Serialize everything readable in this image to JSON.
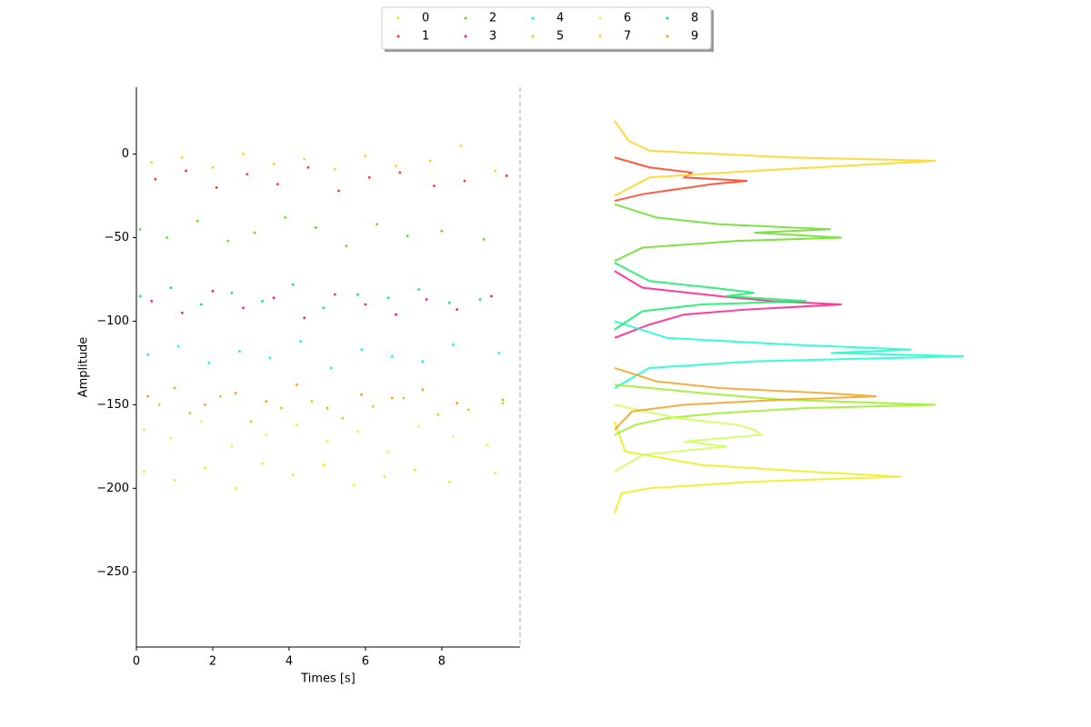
{
  "chart_data": {
    "type": "scatter",
    "xlabel": "Times [s]",
    "ylabel": "Amplitude",
    "xlim": [
      0,
      10.05
    ],
    "ylim": [
      -295,
      40
    ],
    "x2lim": [
      0,
      100
    ],
    "xticks": [
      0,
      2,
      4,
      6,
      8
    ],
    "yticks": [
      0,
      {
        "value": -50,
        "label": "−50"
      },
      {
        "value": -100,
        "label": "−100"
      },
      {
        "value": -150,
        "label": "−150"
      },
      {
        "value": -200,
        "label": "−200"
      },
      {
        "value": -250,
        "label": "−250"
      }
    ],
    "series": [
      {
        "name": "0",
        "color": "#eeee11",
        "x": [
          0.2,
          1.0,
          1.8,
          2.6,
          3.3,
          4.1,
          4.9,
          5.7,
          6.5,
          7.3,
          8.2,
          9.4
        ],
        "values": [
          -190,
          -195,
          -188,
          -200,
          -185,
          -192,
          -186,
          -198,
          -193,
          -189,
          -196,
          -191
        ],
        "density_y": [
          -160,
          -178,
          -186,
          -190,
          -193,
          -196,
          -200,
          -203,
          -215
        ],
        "density": [
          0,
          3,
          25,
          55,
          82,
          40,
          10,
          2,
          0
        ]
      },
      {
        "name": "1",
        "color": "#ff3c1e",
        "x": [
          0.5,
          1.3,
          2.1,
          2.9,
          3.7,
          4.5,
          5.3,
          6.1,
          6.9,
          7.8,
          8.6,
          9.7
        ],
        "values": [
          -15,
          -10,
          -20,
          -12,
          -18,
          -8,
          -22,
          -14,
          -11,
          -19,
          -16,
          -13
        ],
        "density_y": [
          -2,
          -8,
          -11,
          -14,
          -16,
          -18,
          -21,
          -24,
          -28
        ],
        "density": [
          0,
          10,
          22,
          20,
          38,
          28,
          18,
          8,
          0
        ]
      },
      {
        "name": "2",
        "color": "#66dd22",
        "x": [
          0.1,
          0.8,
          1.6,
          2.4,
          3.1,
          3.9,
          4.7,
          5.5,
          6.3,
          7.1,
          8.0,
          9.1
        ],
        "values": [
          -45,
          -50,
          -40,
          -52,
          -47,
          -38,
          -44,
          -55,
          -42,
          -49,
          -46,
          -51
        ],
        "density_y": [
          -30,
          -38,
          -42,
          -45,
          -47,
          -50,
          -52,
          -56,
          -64
        ],
        "density": [
          0,
          12,
          30,
          62,
          40,
          65,
          35,
          8,
          0
        ]
      },
      {
        "name": "3",
        "color": "#ff1a8c",
        "x": [
          0.4,
          1.2,
          2.0,
          2.8,
          3.6,
          4.4,
          5.2,
          6.0,
          6.8,
          7.6,
          8.4,
          9.3
        ],
        "values": [
          -88,
          -95,
          -82,
          -92,
          -86,
          -98,
          -84,
          -90,
          -96,
          -87,
          -93,
          -85
        ],
        "density_y": [
          -70,
          -80,
          -85,
          -88,
          -90,
          -93,
          -96,
          -102,
          -110
        ],
        "density": [
          0,
          8,
          30,
          45,
          65,
          38,
          20,
          10,
          0
        ]
      },
      {
        "name": "4",
        "color": "#11ffcc",
        "x": [
          0.3,
          1.1,
          1.9,
          2.7,
          3.5,
          4.3,
          5.1,
          5.9,
          6.7,
          7.5,
          8.3,
          9.5
        ],
        "values": [
          -120,
          -115,
          -125,
          -118,
          -122,
          -112,
          -128,
          -117,
          -121,
          -124,
          -114,
          -119
        ],
        "density_y": [
          -100,
          -110,
          -114,
          -117,
          -119,
          -121,
          -124,
          -128,
          -140
        ],
        "density": [
          0,
          15,
          50,
          85,
          62,
          100,
          40,
          10,
          0
        ]
      },
      {
        "name": "5",
        "color": "#99ee22",
        "x": [
          0.6,
          1.4,
          2.2,
          3.0,
          3.8,
          4.6,
          5.4,
          6.2,
          7.0,
          7.9,
          8.7,
          9.6
        ],
        "values": [
          -150,
          -155,
          -145,
          -160,
          -152,
          -148,
          -158,
          -151,
          -146,
          -156,
          -153,
          -149
        ],
        "density_y": [
          -138,
          -143,
          -147,
          -150,
          -152,
          -155,
          -158,
          -162,
          -168
        ],
        "density": [
          0,
          25,
          48,
          92,
          55,
          30,
          15,
          6,
          0
        ]
      },
      {
        "name": "6",
        "color": "#ccff55",
        "x": [
          0.2,
          0.9,
          1.7,
          2.5,
          3.4,
          4.2,
          5.0,
          5.8,
          6.6,
          7.4,
          8.3,
          9.2
        ],
        "values": [
          -165,
          -170,
          -160,
          -175,
          -168,
          -162,
          -172,
          -166,
          -178,
          -163,
          -169,
          -174
        ],
        "density_y": [
          -150,
          -158,
          -162,
          -165,
          -168,
          -172,
          -175,
          -180,
          -190
        ],
        "density": [
          0,
          18,
          35,
          40,
          42,
          20,
          32,
          8,
          0
        ]
      },
      {
        "name": "7",
        "color": "#ffd21e",
        "x": [
          0.4,
          1.2,
          2.0,
          2.8,
          3.6,
          4.4,
          5.2,
          6.0,
          6.8,
          7.7,
          8.5,
          9.4
        ],
        "values": [
          -5,
          -2,
          -8,
          0,
          -6,
          -3,
          -9,
          -1,
          -7,
          -4,
          5,
          -10
        ],
        "density_y": [
          20,
          8,
          2,
          -2,
          -4,
          -6,
          -10,
          -14,
          -25
        ],
        "density": [
          0,
          4,
          10,
          50,
          92,
          75,
          40,
          10,
          0
        ]
      },
      {
        "name": "8",
        "color": "#11ee66",
        "x": [
          0.1,
          0.9,
          1.7,
          2.5,
          3.3,
          4.1,
          4.9,
          5.8,
          6.6,
          7.4,
          8.2,
          9.0
        ],
        "values": [
          -85,
          -80,
          -90,
          -83,
          -88,
          -78,
          -92,
          -84,
          -86,
          -81,
          -89,
          -87
        ],
        "density_y": [
          -65,
          -76,
          -80,
          -83,
          -85,
          -88,
          -90,
          -94,
          -105
        ],
        "density": [
          0,
          10,
          28,
          40,
          32,
          55,
          25,
          8,
          0
        ]
      },
      {
        "name": "9",
        "color": "#f5a020",
        "x": [
          0.3,
          1.0,
          1.8,
          2.6,
          3.4,
          4.2,
          5.0,
          5.9,
          6.7,
          7.5,
          8.4,
          9.6
        ],
        "values": [
          -145,
          -140,
          -150,
          -143,
          -148,
          -138,
          -152,
          -144,
          -146,
          -141,
          -149,
          -147
        ],
        "density_y": [
          -128,
          -136,
          -140,
          -143,
          -145,
          -147,
          -150,
          -154,
          -165
        ],
        "density": [
          0,
          12,
          30,
          60,
          75,
          48,
          20,
          5,
          0
        ]
      }
    ]
  }
}
